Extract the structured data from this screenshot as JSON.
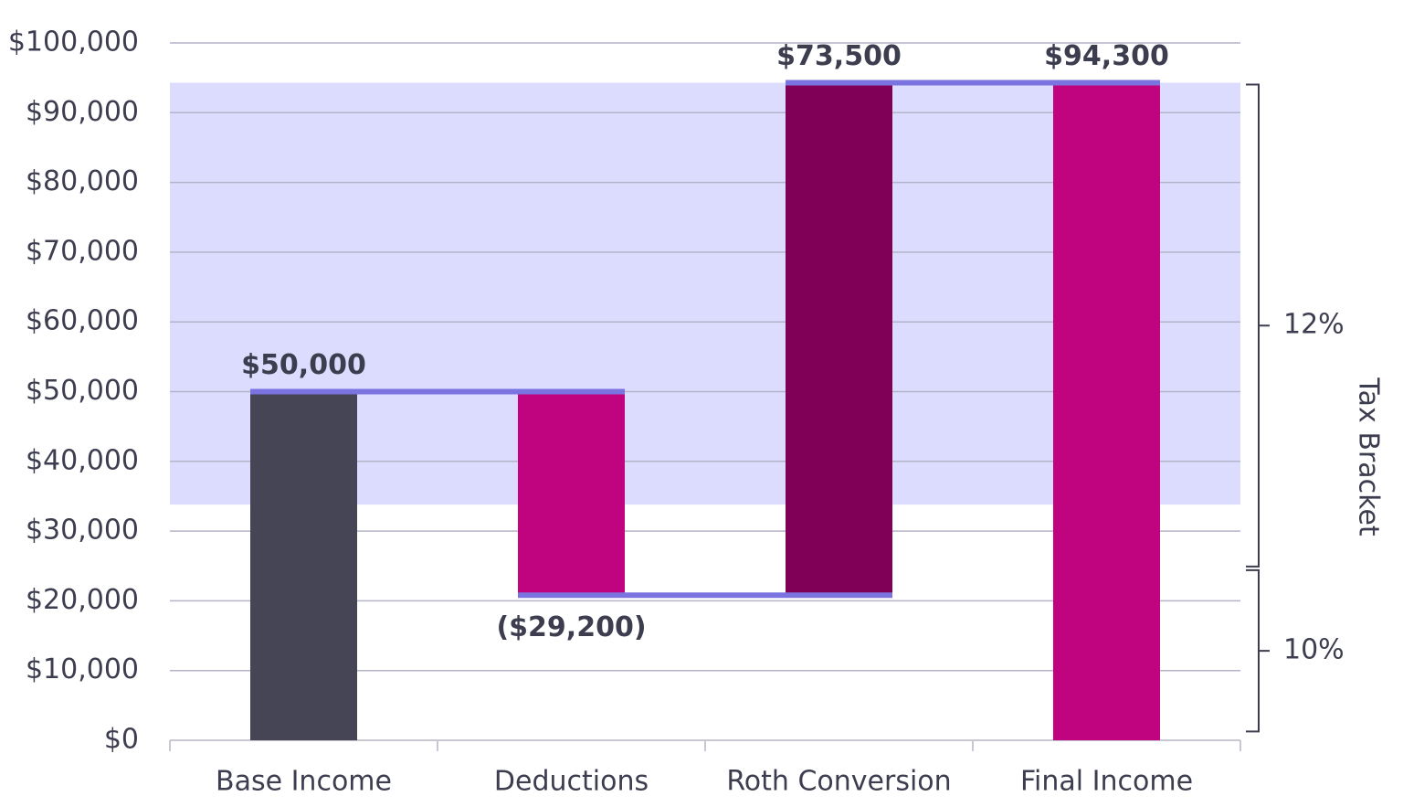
{
  "chart_data": {
    "type": "waterfall",
    "categories": [
      "Base Income",
      "Deductions",
      "Roth Conversion",
      "Final Income"
    ],
    "measures": [
      "absolute",
      "relative",
      "relative",
      "total"
    ],
    "values": [
      50000,
      -29200,
      73500,
      94300
    ],
    "value_labels": [
      "$50,000",
      "($29,200)",
      "$73,500",
      "$94,300"
    ],
    "colors": [
      "#454556",
      "#c0047f",
      "#800058",
      "#c0047f"
    ],
    "connector_color": "#7b74e0",
    "ylim": [
      0,
      100000
    ],
    "yticks": [
      {
        "value": 0,
        "label": "$0"
      },
      {
        "value": 10000,
        "label": "$10,000"
      },
      {
        "value": 20000,
        "label": "$20,000"
      },
      {
        "value": 30000,
        "label": "$30,000"
      },
      {
        "value": 40000,
        "label": "$40,000"
      },
      {
        "value": 50000,
        "label": "$50,000"
      },
      {
        "value": 60000,
        "label": "$60,000"
      },
      {
        "value": 70000,
        "label": "$70,000"
      },
      {
        "value": 80000,
        "label": "$80,000"
      },
      {
        "value": 90000,
        "label": "$90,000"
      },
      {
        "value": 100000,
        "label": "$100,000"
      }
    ],
    "grid": true,
    "band": [
      33800,
      94300
    ],
    "band_color": "#dcdcff",
    "y2_label": "Tax Bracket",
    "brackets": [
      {
        "label": "10%",
        "range": [
          1000,
          24650
        ]
      },
      {
        "label": "12%",
        "range": [
          24650,
          94300
        ]
      }
    ]
  }
}
